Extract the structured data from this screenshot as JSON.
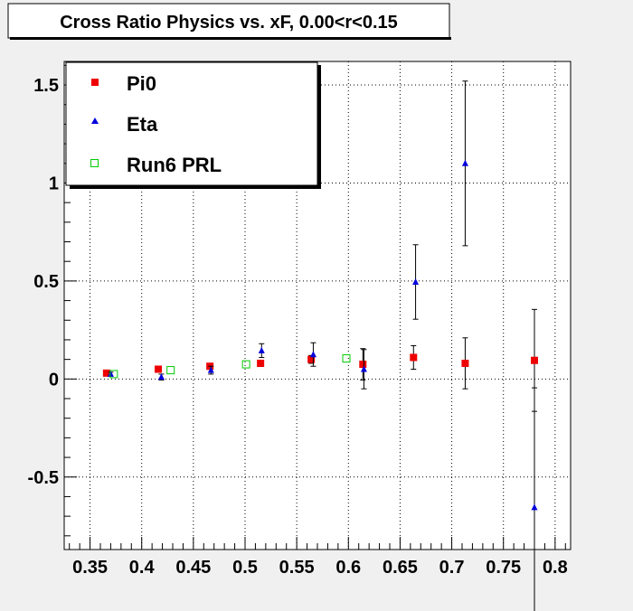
{
  "chart_data": {
    "type": "scatter",
    "title": "Cross Ratio Physics vs. xF, 0.00<r<0.15",
    "xlabel": "",
    "ylabel": "",
    "xlim": [
      0.325,
      0.815
    ],
    "ylim": [
      -0.87,
      1.62
    ],
    "grid": true,
    "legend_position": "top-left",
    "x_ticks": [
      0.35,
      0.4,
      0.45,
      0.5,
      0.55,
      0.6,
      0.65,
      0.7,
      0.75,
      0.8
    ],
    "x_tick_labels": [
      "0.35",
      "0.4",
      "0.45",
      "0.5",
      "0.55",
      "0.6",
      "0.65",
      "0.7",
      "0.75",
      "0.8"
    ],
    "y_ticks": [
      -0.5,
      0,
      0.5,
      1,
      1.5
    ],
    "y_tick_labels": [
      "-0.5",
      "0",
      "0.5",
      "1",
      "1.5"
    ],
    "series": [
      {
        "name": "Pi0",
        "marker": "square-filled",
        "color": "#ee0000",
        "points": [
          {
            "x": 0.366,
            "y": 0.03,
            "err": 0.01
          },
          {
            "x": 0.416,
            "y": 0.05,
            "err": 0.01
          },
          {
            "x": 0.466,
            "y": 0.065,
            "err": 0.012
          },
          {
            "x": 0.515,
            "y": 0.08,
            "err": 0.015
          },
          {
            "x": 0.564,
            "y": 0.1,
            "err": 0.02
          },
          {
            "x": 0.614,
            "y": 0.075,
            "err": 0.08
          },
          {
            "x": 0.663,
            "y": 0.11,
            "err": 0.06
          },
          {
            "x": 0.713,
            "y": 0.08,
            "err": 0.13
          },
          {
            "x": 0.78,
            "y": 0.095,
            "err": 0.26
          }
        ]
      },
      {
        "name": "Eta",
        "marker": "triangle-filled",
        "color": "#0000dd",
        "points": [
          {
            "x": 0.37,
            "y": 0.025,
            "err": 0.01
          },
          {
            "x": 0.419,
            "y": 0.01,
            "err": 0.015
          },
          {
            "x": 0.467,
            "y": 0.045,
            "err": 0.02
          },
          {
            "x": 0.516,
            "y": 0.145,
            "err": 0.035
          },
          {
            "x": 0.566,
            "y": 0.125,
            "err": 0.06
          },
          {
            "x": 0.615,
            "y": 0.05,
            "err": 0.1
          },
          {
            "x": 0.665,
            "y": 0.495,
            "err": 0.19
          },
          {
            "x": 0.713,
            "y": 1.1,
            "err": 0.42
          },
          {
            "x": 0.78,
            "y": -0.655,
            "err": 0.61
          }
        ]
      },
      {
        "name": "Run6 PRL",
        "marker": "square-open",
        "color": "#00cc00",
        "points": [
          {
            "x": 0.373,
            "y": 0.025,
            "err": 0
          },
          {
            "x": 0.428,
            "y": 0.045,
            "err": 0
          },
          {
            "x": 0.501,
            "y": 0.075,
            "err": 0
          },
          {
            "x": 0.598,
            "y": 0.105,
            "err": 0
          }
        ]
      }
    ]
  }
}
